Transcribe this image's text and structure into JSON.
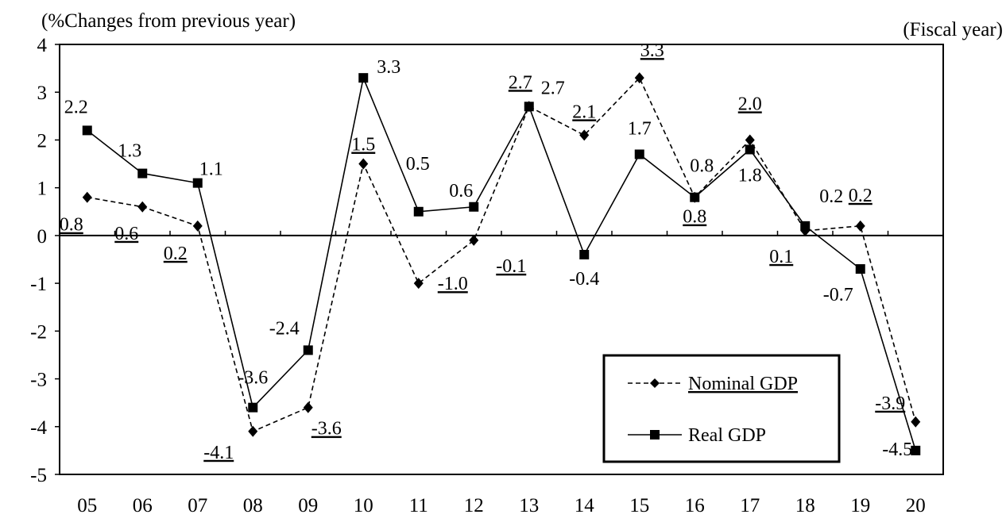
{
  "chart_data": {
    "type": "line",
    "ylabel": "(%Changes from previous year)",
    "xlabel": "(Fiscal year)",
    "categories": [
      "05",
      "06",
      "07",
      "08",
      "09",
      "10",
      "11",
      "12",
      "13",
      "14",
      "15",
      "16",
      "17",
      "18",
      "19",
      "20"
    ],
    "y_ticks": [
      "4",
      "3",
      "2",
      "1",
      "0",
      "-1",
      "-2",
      "-3",
      "-4",
      "-5"
    ],
    "ylim": [
      -5,
      4
    ],
    "grid": false,
    "legend_position": "bottom-right",
    "series": [
      {
        "name": "Nominal GDP",
        "style": "dashed",
        "marker": "diamond",
        "values": [
          0.8,
          0.6,
          0.2,
          -4.1,
          -3.6,
          1.5,
          -1.0,
          -0.1,
          2.7,
          2.1,
          3.3,
          0.8,
          2.0,
          0.1,
          0.2,
          -3.9
        ],
        "labels": [
          "0.8",
          "0.6",
          "0.2",
          "-4.1",
          "-3.6",
          "1.5",
          "-1.0",
          "-0.1",
          "2.7",
          "2.1",
          "3.3",
          "0.8",
          "2.0",
          "0.1",
          "0.2",
          "-3.9"
        ]
      },
      {
        "name": "Real GDP",
        "style": "solid",
        "marker": "square",
        "values": [
          2.2,
          1.3,
          1.1,
          -3.6,
          -2.4,
          3.3,
          0.5,
          0.6,
          2.7,
          -0.4,
          1.7,
          0.8,
          1.8,
          0.2,
          -0.7,
          -4.5
        ],
        "labels": [
          "2.2",
          "1.3",
          "1.1",
          "-3.6",
          "-2.4",
          "3.3",
          "0.5",
          "0.6",
          "2.7",
          "-0.4",
          "1.7",
          "0.8",
          "1.8",
          "0.2",
          "-0.7",
          "-4.5"
        ]
      }
    ],
    "colors": {
      "line": "#000000",
      "background": "#ffffff"
    }
  }
}
